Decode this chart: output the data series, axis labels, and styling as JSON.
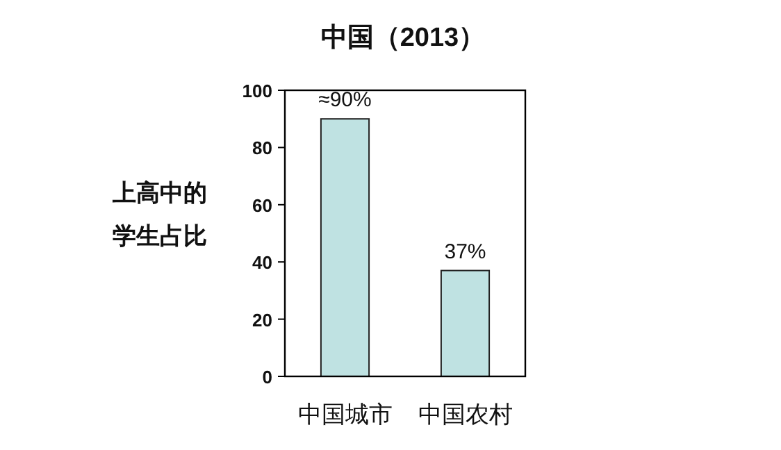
{
  "chart_data": {
    "type": "bar",
    "title": "中国（2013）",
    "ylabel": "上高中的学生占比",
    "categories": [
      "中国城市",
      "中国农村"
    ],
    "values": [
      90,
      37
    ],
    "value_labels": [
      "≈90%",
      "37%"
    ],
    "color": "#bfe2e2",
    "ylim": [
      0,
      100
    ],
    "yticks": [
      0,
      20,
      40,
      60,
      80,
      100
    ]
  }
}
